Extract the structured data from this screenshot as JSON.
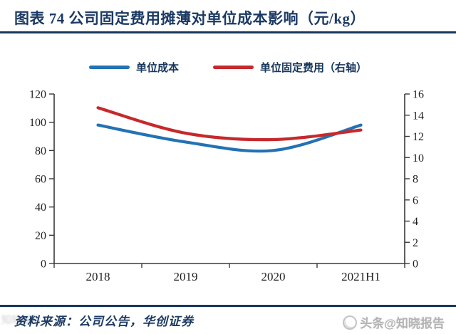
{
  "header": {
    "title": "图表 74  公司固定费用摊薄对单位成本影响（元/kg）"
  },
  "legend": [
    {
      "label": "单位成本",
      "color": "#2272B4"
    },
    {
      "label": "单位固定费用（右轴）",
      "color": "#C5292C"
    }
  ],
  "chart_data": {
    "type": "line",
    "smooth": true,
    "grid": false,
    "legend_position": "top",
    "categories": [
      "2018",
      "2019",
      "2020",
      "2021H1"
    ],
    "series": [
      {
        "name": "单位成本",
        "axis": "left",
        "color": "#2272B4",
        "values": [
          98,
          86,
          80,
          98
        ]
      },
      {
        "name": "单位固定费用（右轴）",
        "axis": "right",
        "color": "#C5292C",
        "values": [
          14.7,
          12.3,
          11.7,
          12.6
        ]
      }
    ],
    "y_left": {
      "min": 0,
      "max": 120,
      "step": 20,
      "ticks": [
        "0",
        "20",
        "40",
        "60",
        "80",
        "100",
        "120"
      ]
    },
    "y_right": {
      "min": 0,
      "max": 16,
      "step": 2,
      "ticks": [
        "0",
        "2",
        "4",
        "6",
        "8",
        "10",
        "12",
        "14",
        "16"
      ]
    }
  },
  "footer": {
    "source": "资料来源：公司公告，华创证券"
  },
  "watermarks": {
    "bottom_right": "头条@知晓报告",
    "bottom_left": "知晓报告"
  },
  "colors": {
    "navy": "#17375E",
    "blue": "#2272B4",
    "red": "#C5292C",
    "axis": "#3a3a3a"
  }
}
